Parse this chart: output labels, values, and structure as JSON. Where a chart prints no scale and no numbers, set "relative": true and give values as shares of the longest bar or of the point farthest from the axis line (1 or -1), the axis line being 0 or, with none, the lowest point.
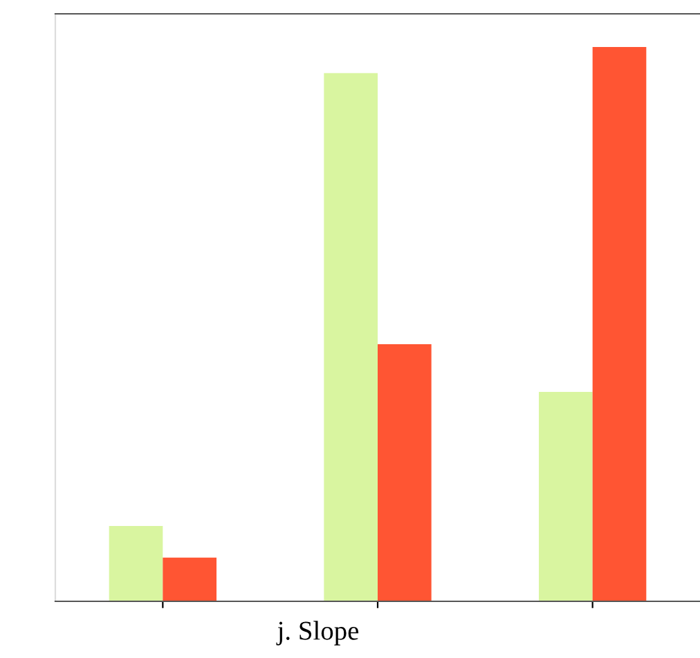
{
  "chart_data": {
    "type": "bar",
    "title": "j. Slope",
    "relative": true,
    "categories": [
      null,
      null,
      null
    ],
    "series": [
      {
        "color": "#d9f5a0",
        "values": [
          0.136,
          0.953,
          0.378
        ]
      },
      {
        "color": "#ff5533",
        "values": [
          0.079,
          0.464,
          1
        ]
      }
    ]
  }
}
